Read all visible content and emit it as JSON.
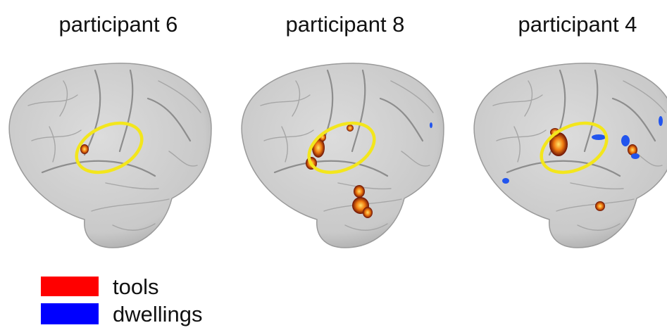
{
  "panels": [
    {
      "title": "participant 6"
    },
    {
      "title": "participant 8"
    },
    {
      "title": "participant 4"
    }
  ],
  "legend": [
    {
      "label": "tools",
      "color": "#ff0000"
    },
    {
      "label": "dwellings",
      "color": "#0000ff"
    }
  ]
}
